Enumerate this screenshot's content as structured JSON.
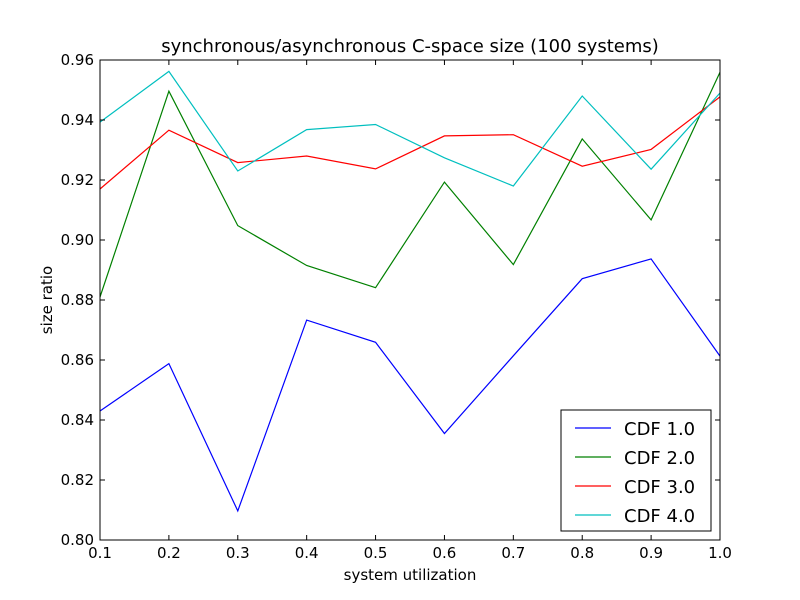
{
  "chart_data": {
    "type": "line",
    "title": "synchronous/asynchronous C-space size (100 systems)",
    "xlabel": "system utilization",
    "ylabel": "size ratio",
    "xlim": [
      0.1,
      1.0
    ],
    "ylim": [
      0.8,
      0.96
    ],
    "x": [
      0.1,
      0.2,
      0.3,
      0.4,
      0.5,
      0.6,
      0.7,
      0.8,
      0.9,
      1.0
    ],
    "xticks": [
      "0.1",
      "0.2",
      "0.3",
      "0.4",
      "0.5",
      "0.6",
      "0.7",
      "0.8",
      "0.9",
      "1.0"
    ],
    "yticks": [
      "0.80",
      "0.82",
      "0.84",
      "0.86",
      "0.88",
      "0.90",
      "0.92",
      "0.94",
      "0.96"
    ],
    "legend_position": "lower-right",
    "grid": false,
    "series": [
      {
        "name": "CDF 1.0",
        "color": "#0000ff",
        "values": [
          0.843,
          0.8588,
          0.8097,
          0.8733,
          0.8659,
          0.8355,
          0.8614,
          0.8871,
          0.8937,
          0.8613
        ]
      },
      {
        "name": "CDF 2.0",
        "color": "#008000",
        "values": [
          0.881,
          0.9496,
          0.9048,
          0.8915,
          0.8841,
          0.9193,
          0.8918,
          0.9337,
          0.9067,
          0.9559
        ]
      },
      {
        "name": "CDF 3.0",
        "color": "#ff0000",
        "values": [
          0.917,
          0.9366,
          0.9258,
          0.928,
          0.9237,
          0.9347,
          0.9351,
          0.9246,
          0.9302,
          0.9477
        ]
      },
      {
        "name": "CDF 4.0",
        "color": "#00bfbf",
        "values": [
          0.9393,
          0.9562,
          0.923,
          0.9368,
          0.9385,
          0.9274,
          0.918,
          0.948,
          0.9236,
          0.949
        ]
      }
    ]
  }
}
